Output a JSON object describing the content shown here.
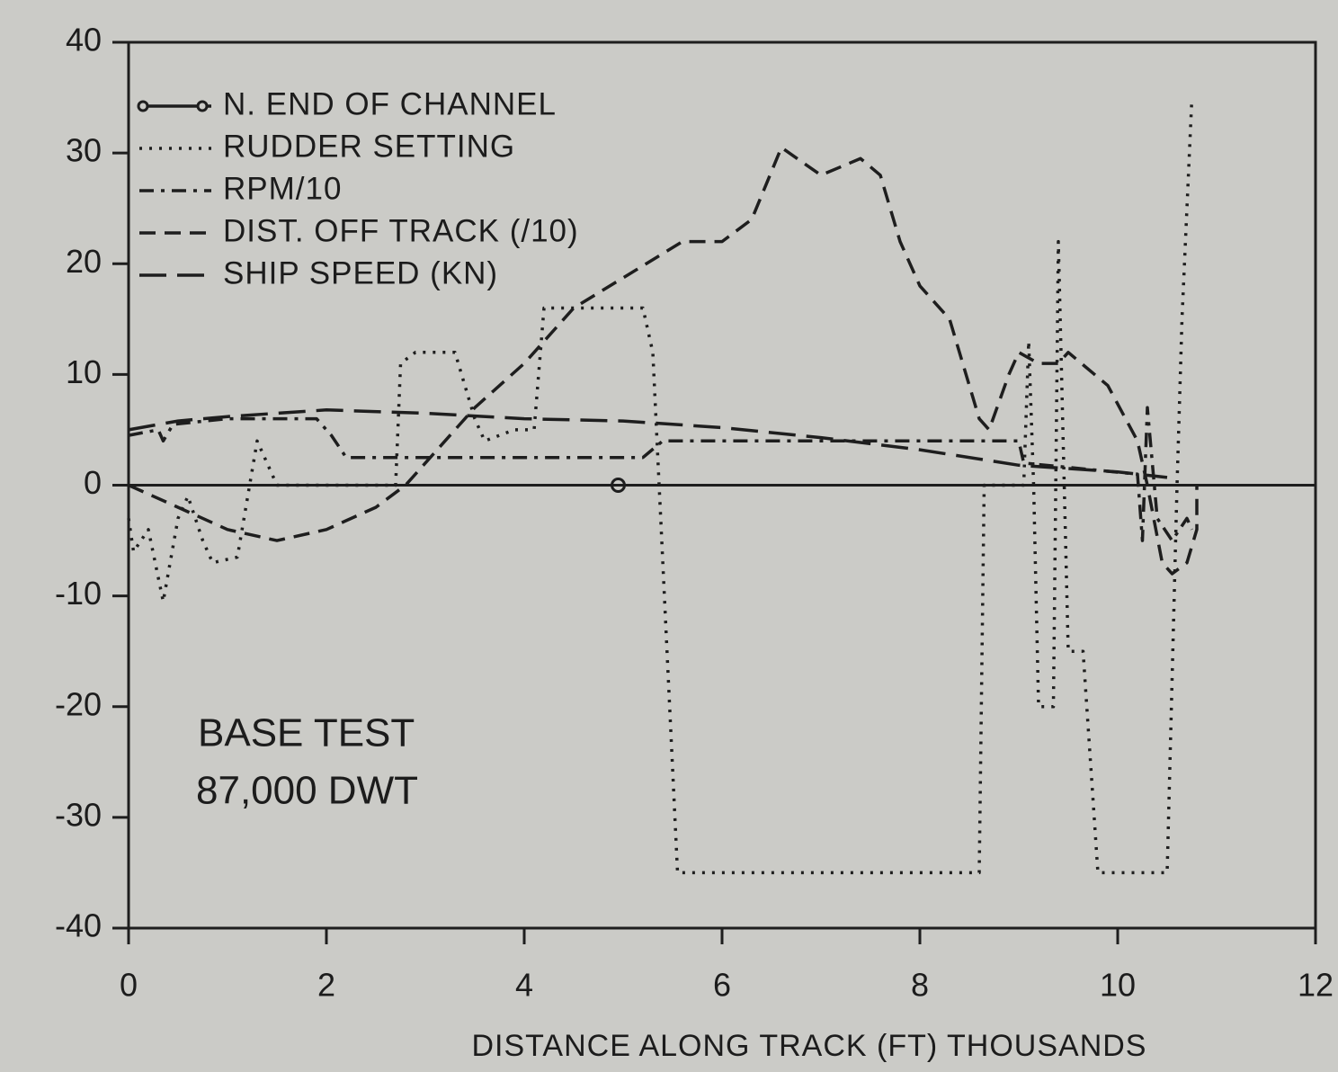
{
  "chart_data": {
    "type": "line",
    "xlabel": "DISTANCE ALONG TRACK (FT)   THOUSANDS",
    "annotations": [
      "BASE TEST",
      "87,000 DWT"
    ],
    "xlim": [
      0,
      12
    ],
    "xticks": [
      0,
      2,
      4,
      6,
      8,
      10,
      12
    ],
    "ylim": [
      -40,
      40
    ],
    "yticks": [
      -40,
      -30,
      -20,
      -10,
      0,
      10,
      20,
      30,
      40
    ],
    "zero_line": true,
    "legend": "upper left",
    "color": "#1e1e1e",
    "series": [
      {
        "name": "N. END OF CHANNEL",
        "style": "marker",
        "x": [
          4.95
        ],
        "values": [
          0
        ]
      },
      {
        "name": "RUDDER SETTING",
        "style": "dotted",
        "x": [
          0,
          0.05,
          0.2,
          0.35,
          0.5,
          0.6,
          0.75,
          0.85,
          1.1,
          1.3,
          1.5,
          2.7,
          2.75,
          2.9,
          3.3,
          3.5,
          3.6,
          3.9,
          4.1,
          4.2,
          4.6,
          5.2,
          5.3,
          5.55,
          8.6,
          8.65,
          9.05,
          9.1,
          9.15,
          9.2,
          9.35,
          9.4,
          9.5,
          9.65,
          9.8,
          10.5,
          10.6,
          10.65,
          10.75
        ],
        "values": [
          -3,
          -6,
          -4,
          -10.5,
          -3,
          -1,
          -5,
          -7,
          -6.5,
          4,
          0,
          0,
          11,
          12,
          12,
          6,
          4,
          5,
          5,
          16,
          16,
          16,
          12,
          -35,
          -35,
          0,
          0,
          13,
          0,
          -20,
          -20,
          22,
          -15,
          -15,
          -35,
          -35,
          0,
          15,
          35
        ]
      },
      {
        "name": "RPM/10",
        "style": "dashdot",
        "x": [
          0,
          0.3,
          0.35,
          0.45,
          1,
          1.5,
          1.9,
          2.05,
          2.2,
          2.5,
          5.2,
          5.4,
          6,
          7.5,
          9,
          9.05,
          10.2,
          10.25,
          10.3,
          10.4,
          10.55,
          10.7,
          10.75
        ],
        "values": [
          4.5,
          5,
          4,
          5.5,
          6,
          6,
          6,
          4.5,
          2.5,
          2.5,
          2.5,
          4,
          4,
          4,
          4,
          2,
          1,
          -5,
          7,
          -3,
          -5,
          -3,
          -4
        ]
      },
      {
        "name": "DIST. OFF TRACK  (/10)",
        "style": "dashed",
        "x": [
          0,
          0.5,
          1,
          1.5,
          2,
          2.5,
          2.8,
          3.5,
          4,
          4.5,
          5.6,
          6,
          6.3,
          6.6,
          7,
          7.4,
          7.6,
          7.8,
          8,
          8.3,
          8.6,
          8.7,
          8.9,
          9,
          9.2,
          9.4,
          9.5,
          9.9,
          10.2,
          10.3,
          10.45,
          10.55,
          10.7,
          10.8,
          10.8
        ],
        "values": [
          0,
          -2,
          -4,
          -5,
          -4,
          -2,
          0,
          7,
          11,
          16,
          22,
          22,
          24,
          30.5,
          28,
          29.5,
          28,
          22,
          18,
          15,
          6,
          5,
          10,
          12,
          11,
          11,
          12,
          9,
          4,
          0,
          -7,
          -8,
          -7,
          -4,
          0
        ]
      },
      {
        "name": "SHIP SPEED  (KN)",
        "style": "longdash",
        "x": [
          0,
          0.5,
          1,
          2,
          3,
          4,
          5,
          6,
          7,
          8,
          9,
          9.5,
          10,
          10.5
        ],
        "values": [
          5,
          5.8,
          6.2,
          6.8,
          6.5,
          6,
          5.8,
          5.2,
          4.3,
          3.2,
          1.8,
          1.5,
          1.2,
          0.7
        ]
      }
    ]
  }
}
